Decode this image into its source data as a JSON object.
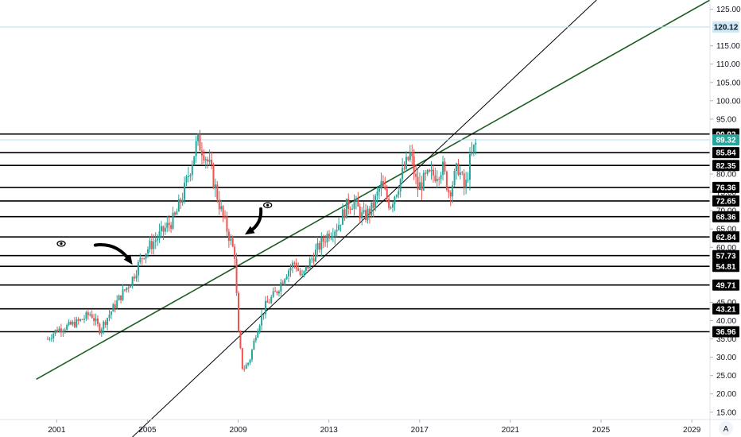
{
  "chart_data": {
    "type": "candlestick",
    "title": "",
    "xlabel": "",
    "ylabel": "",
    "x_range": [
      1998.5,
      2029.8
    ],
    "y_range": [
      13.0,
      127.5
    ],
    "x_ticks": [
      "2001",
      "2005",
      "2009",
      "2013",
      "2017",
      "2021",
      "2025",
      "2029"
    ],
    "x_tick_years": [
      2001,
      2005,
      2009,
      2013,
      2017,
      2021,
      2025,
      2029
    ],
    "y_ticks": [
      "15.00",
      "20.00",
      "25.00",
      "30.00",
      "35.00",
      "40.00",
      "45.00",
      "60.00",
      "65.00",
      "70.00",
      "75.00",
      "80.00",
      "95.00",
      "100.00",
      "105.00",
      "110.00",
      "115.00",
      "125.00"
    ],
    "y_tick_values": [
      15,
      20,
      25,
      30,
      35,
      40,
      45,
      60,
      65,
      70,
      75,
      80,
      95,
      100,
      105,
      110,
      115,
      125
    ],
    "horizontal_levels": [
      {
        "label": "90.92",
        "value": 90.92
      },
      {
        "label": "85.84",
        "value": 85.84
      },
      {
        "label": "82.35",
        "value": 82.35
      },
      {
        "label": "76.36",
        "value": 76.36
      },
      {
        "label": "72.65",
        "value": 72.65
      },
      {
        "label": "68.36",
        "value": 68.36
      },
      {
        "label": "62.84",
        "value": 62.84
      },
      {
        "label": "57.73",
        "value": 57.73
      },
      {
        "label": "54.81",
        "value": 54.81
      },
      {
        "label": "49.71",
        "value": 49.71
      },
      {
        "label": "43.21",
        "value": 43.21
      },
      {
        "label": "36.96",
        "value": 36.96
      }
    ],
    "alert_level": {
      "label": "120.12",
      "value": 120.12
    },
    "last_price": {
      "label": "89.32",
      "value": 89.32
    },
    "trendlines": [
      {
        "name": "green-channel",
        "color": "#1b5e20",
        "from": [
          2000.1,
          24.0
        ],
        "to": [
          2029.8,
          127.5
        ]
      },
      {
        "name": "black-support",
        "color": "#000000",
        "from": [
          2004.3,
          8.0
        ],
        "to": [
          2024.8,
          127.5
        ]
      }
    ],
    "annotations": [
      {
        "kind": "arrow",
        "from": [
          2002.7,
          60.6
        ],
        "to": [
          2004.2,
          56.5
        ]
      },
      {
        "kind": "arrow",
        "from": [
          2010.0,
          70.5
        ],
        "to": [
          2009.5,
          64.3
        ]
      },
      {
        "kind": "eye",
        "at": [
          2001.2,
          61.0
        ]
      },
      {
        "kind": "eye",
        "at": [
          2010.3,
          71.5
        ]
      }
    ],
    "price_path": [
      [
        2000.6,
        35.0
      ],
      [
        2001.0,
        37.5
      ],
      [
        2001.5,
        38.5
      ],
      [
        2002.0,
        39.8
      ],
      [
        2002.5,
        42.0
      ],
      [
        2002.9,
        37.5
      ],
      [
        2003.4,
        42.5
      ],
      [
        2003.8,
        46.5
      ],
      [
        2004.3,
        51.0
      ],
      [
        2004.8,
        58.0
      ],
      [
        2005.2,
        61.0
      ],
      [
        2005.7,
        64.5
      ],
      [
        2006.2,
        68.0
      ],
      [
        2006.6,
        75.0
      ],
      [
        2006.9,
        82.0
      ],
      [
        2007.2,
        89.0
      ],
      [
        2007.5,
        86.0
      ],
      [
        2007.8,
        81.0
      ],
      [
        2008.2,
        71.0
      ],
      [
        2008.6,
        63.0
      ],
      [
        2008.85,
        58.0
      ],
      [
        2009.0,
        37.0
      ],
      [
        2009.2,
        26.5
      ],
      [
        2009.5,
        29.0
      ],
      [
        2009.8,
        37.0
      ],
      [
        2010.2,
        44.0
      ],
      [
        2010.7,
        48.0
      ],
      [
        2011.1,
        53.0
      ],
      [
        2011.5,
        56.0
      ],
      [
        2011.8,
        51.5
      ],
      [
        2012.2,
        56.5
      ],
      [
        2012.6,
        60.5
      ],
      [
        2013.0,
        64.0
      ],
      [
        2013.4,
        66.0
      ],
      [
        2013.8,
        71.5
      ],
      [
        2014.1,
        72.5
      ],
      [
        2014.5,
        68.0
      ],
      [
        2014.9,
        70.5
      ],
      [
        2015.3,
        77.0
      ],
      [
        2015.7,
        71.5
      ],
      [
        2016.0,
        76.0
      ],
      [
        2016.3,
        81.0
      ],
      [
        2016.6,
        85.5
      ],
      [
        2016.9,
        76.0
      ],
      [
        2017.3,
        79.0
      ],
      [
        2017.7,
        80.0
      ],
      [
        2018.0,
        82.0
      ],
      [
        2018.3,
        75.0
      ],
      [
        2018.7,
        82.0
      ],
      [
        2019.0,
        75.5
      ],
      [
        2019.2,
        83.0
      ],
      [
        2019.4,
        87.0
      ],
      [
        2019.55,
        89.32
      ]
    ]
  },
  "colors": {
    "up": "#26a69a",
    "down": "#ef5350",
    "level_line": "#000000",
    "alert_line": "#b3e0f7",
    "alert_badge": "#cce9f7",
    "last_badge": "#26a69a",
    "level_badge": "#000000",
    "axis_border": "#e0e3eb"
  },
  "ui": {
    "scale_mode": "A"
  }
}
